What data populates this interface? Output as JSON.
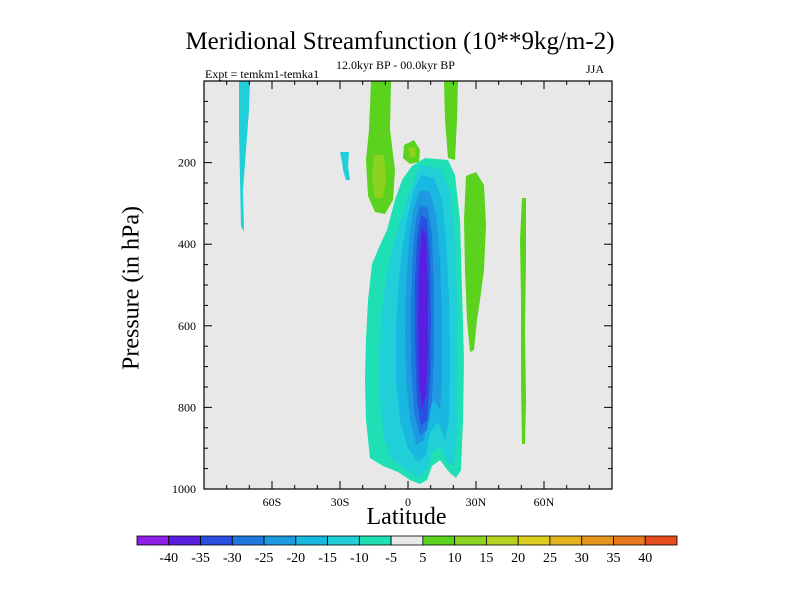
{
  "chart_data": {
    "type": "contour",
    "title": "Meridional Streamfunction (10**9kg/m-2)",
    "subtitle": "12.0kyr BP - 00.0kyr BP",
    "experiment": "Expt = temkm1-temka1",
    "season": "JJA",
    "xlabel": "Latitude",
    "ylabel": "Pressure (in hPa)",
    "xlim": [
      -90,
      90
    ],
    "ylim": [
      1000,
      0
    ],
    "xticks": [
      {
        "value": -60,
        "label": "60S"
      },
      {
        "value": -30,
        "label": "30S"
      },
      {
        "value": 0,
        "label": "0"
      },
      {
        "value": 30,
        "label": "30N"
      },
      {
        "value": 60,
        "label": "60N"
      }
    ],
    "yticks": [
      {
        "value": 200,
        "label": "200"
      },
      {
        "value": 400,
        "label": "400"
      },
      {
        "value": 600,
        "label": "600"
      },
      {
        "value": 800,
        "label": "800"
      },
      {
        "value": 1000,
        "label": "1000"
      }
    ],
    "colorbar": {
      "levels": [
        -40,
        -35,
        -30,
        -25,
        -20,
        -15,
        -10,
        -5,
        5,
        10,
        15,
        20,
        25,
        30,
        35,
        40
      ],
      "labels": [
        "-40",
        "-35",
        "-30",
        "-25",
        "-20",
        "-15",
        "-10",
        "-5",
        "5",
        "10",
        "15",
        "20",
        "25",
        "30",
        "35",
        "40"
      ],
      "colors": [
        "#8f1ee6",
        "#5a1ee0",
        "#2a4fe0",
        "#1e78e0",
        "#1e9be0",
        "#18b8e0",
        "#20cfd8",
        "#1ee0b4",
        "#e8e8e8",
        "#5ad21e",
        "#8cd21e",
        "#b4d21e",
        "#dccd1e",
        "#e6b41e",
        "#e6961e",
        "#e6781e",
        "#e64b1e"
      ]
    },
    "regions": [
      {
        "name": "region-main-negative-core",
        "value": -35,
        "lat": [
          4,
          12
        ],
        "pressure": [
          300,
          900
        ]
      },
      {
        "name": "region-main-negative-cell",
        "value": -20,
        "lat": [
          -10,
          22
        ],
        "pressure": [
          150,
          980
        ]
      },
      {
        "name": "region-upper-positive",
        "value": 10,
        "lat": [
          -15,
          20
        ],
        "pressure": [
          0,
          300
        ]
      },
      {
        "name": "region-nh-positive-strip",
        "value": 10,
        "lat": [
          25,
          35
        ],
        "pressure": [
          180,
          680
        ]
      },
      {
        "name": "region-nh-high-lat-strip",
        "value": 5,
        "lat": [
          48,
          52
        ],
        "pressure": [
          280,
          900
        ]
      },
      {
        "name": "region-sh-negative-strip",
        "value": -10,
        "lat": [
          -74,
          -69
        ],
        "pressure": [
          0,
          230
        ]
      },
      {
        "name": "region-sh-small-negative",
        "value": -10,
        "lat": [
          -28,
          -25
        ],
        "pressure": [
          170,
          240
        ]
      }
    ]
  }
}
